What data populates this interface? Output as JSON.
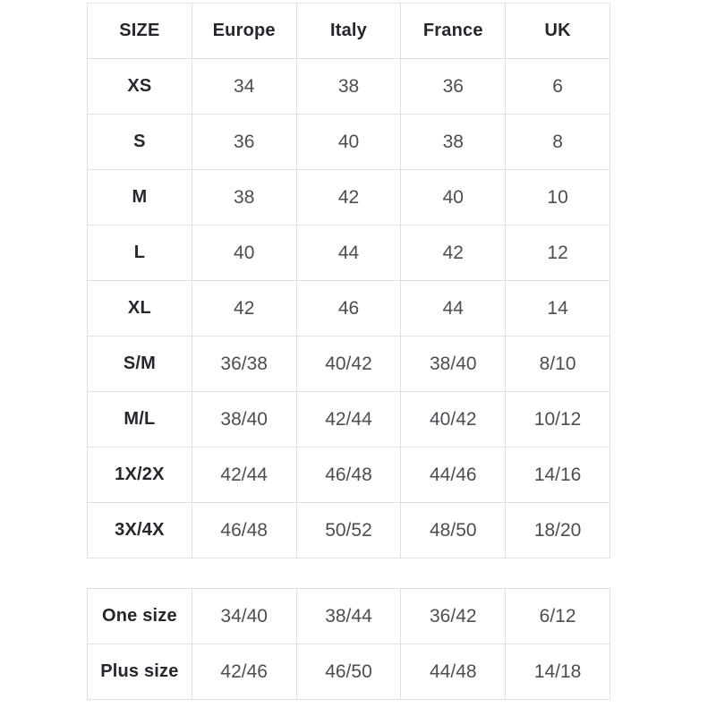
{
  "colors": {
    "background": "#ffffff",
    "border": "#e0e0e0",
    "label_text": "#26262f",
    "value_text": "#4c4d55"
  },
  "main_table": {
    "columns": [
      "SIZE",
      "Europe",
      "Italy",
      "France",
      "UK"
    ],
    "rows": [
      {
        "size": "XS",
        "values": [
          "34",
          "38",
          "36",
          "6"
        ]
      },
      {
        "size": "S",
        "values": [
          "36",
          "40",
          "38",
          "8"
        ]
      },
      {
        "size": "M",
        "values": [
          "38",
          "42",
          "40",
          "10"
        ]
      },
      {
        "size": "L",
        "values": [
          "40",
          "44",
          "42",
          "12"
        ]
      },
      {
        "size": "XL",
        "values": [
          "42",
          "46",
          "44",
          "14"
        ]
      },
      {
        "size": "S/M",
        "values": [
          "36/38",
          "40/42",
          "38/40",
          "8/10"
        ]
      },
      {
        "size": "M/L",
        "values": [
          "38/40",
          "42/44",
          "40/42",
          "10/12"
        ]
      },
      {
        "size": "1X/2X",
        "values": [
          "42/44",
          "46/48",
          "44/46",
          "14/16"
        ]
      },
      {
        "size": "3X/4X",
        "values": [
          "46/48",
          "50/52",
          "48/50",
          "18/20"
        ]
      }
    ]
  },
  "extra_table": {
    "rows": [
      {
        "size": "One size",
        "values": [
          "34/40",
          "38/44",
          "36/42",
          "6/12"
        ]
      },
      {
        "size": "Plus size",
        "values": [
          "42/46",
          "46/50",
          "44/48",
          "14/18"
        ]
      }
    ]
  }
}
